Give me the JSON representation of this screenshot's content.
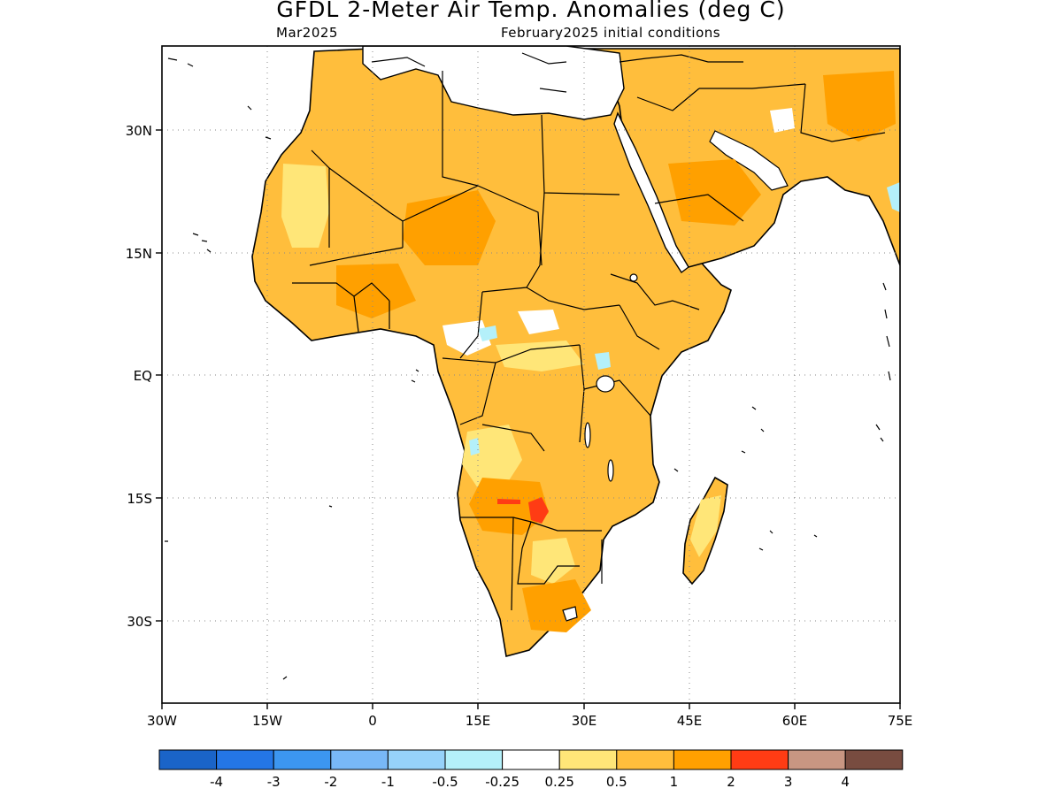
{
  "title": "GFDL 2-Meter Air Temp. Anomalies (deg C)",
  "subtitle_left": "Mar2025",
  "subtitle_right": "February2025 initial conditions",
  "lat_labels": [
    "30N",
    "15N",
    "EQ",
    "15S",
    "30S"
  ],
  "lon_labels": [
    "30W",
    "15W",
    "0",
    "15E",
    "30E",
    "45E",
    "60E",
    "75E"
  ],
  "legend": {
    "colors": [
      "#1a64c8",
      "#2476e6",
      "#3c96f0",
      "#78b8f8",
      "#96d2fa",
      "#b4f0fa",
      "#ffffff",
      "#ffe678",
      "#ffbe3c",
      "#ffa000",
      "#ff3c14",
      "#c89682",
      "#784c40"
    ],
    "labels": [
      "-4",
      "-3",
      "-2",
      "-1",
      "-0.5",
      "-0.25",
      "0.25",
      "0.5",
      "1",
      "2",
      "3",
      "4"
    ]
  }
}
